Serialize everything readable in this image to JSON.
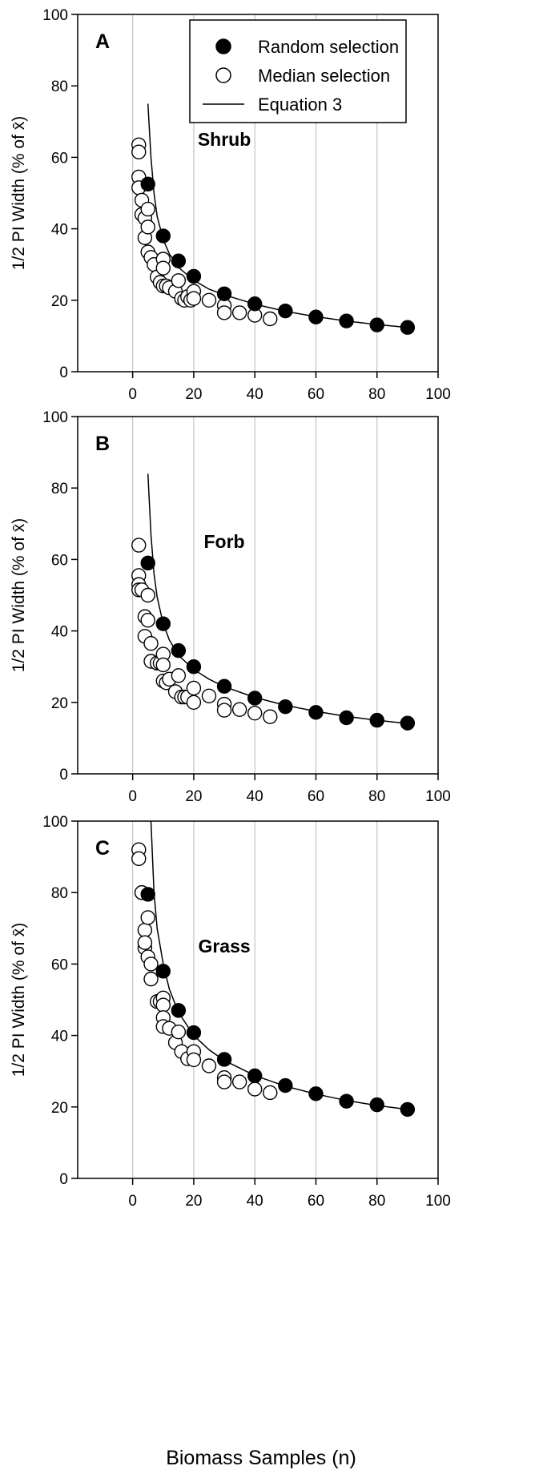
{
  "figure": {
    "x_axis_label": "Biomass Samples (n)"
  },
  "legend": {
    "random_label": "Random selection",
    "median_label": "Median selection",
    "equation_label": "Equation 3"
  },
  "chart_data": [
    {
      "type": "scatter",
      "panel": "A",
      "label": "Shrub",
      "ylabel": "1/2 PI Width (% of x̄)",
      "xlim": [
        -18,
        100
      ],
      "ylim": [
        0,
        100
      ],
      "xticks": [
        0,
        20,
        40,
        60,
        80,
        100
      ],
      "yticks": [
        0,
        20,
        40,
        60,
        80,
        100
      ],
      "grid": "vertical",
      "legend_position": "top-right",
      "series": [
        {
          "name": "Random selection",
          "marker": "filled-circle",
          "x": [
            5,
            10,
            15,
            20,
            30,
            40,
            50,
            60,
            70,
            80,
            90
          ],
          "y": [
            52.5,
            38,
            31,
            26.7,
            21.8,
            19,
            17,
            15.3,
            14.2,
            13.1,
            12.4
          ]
        },
        {
          "name": "Median selection",
          "marker": "open-circle",
          "x": [
            2,
            2,
            2,
            2,
            3,
            3,
            4,
            4,
            5,
            5,
            5,
            6,
            7,
            8,
            9,
            10,
            10,
            10,
            11,
            12,
            14,
            15,
            16,
            17,
            18,
            19,
            20,
            20,
            25,
            30,
            30,
            35,
            40,
            45
          ],
          "y": [
            63.5,
            61.5,
            54.5,
            51.5,
            48,
            44,
            43,
            37.5,
            45.5,
            40.5,
            33.5,
            32,
            30,
            26.5,
            25,
            31.5,
            29,
            24,
            24,
            23.5,
            22.5,
            25.5,
            20.5,
            20,
            21,
            20,
            22.5,
            20.5,
            20,
            18.5,
            16.5,
            16.5,
            15.8,
            14.8
          ]
        },
        {
          "name": "Equation 3",
          "marker": "line",
          "x": [
            5,
            6,
            7,
            8,
            10,
            12,
            15,
            20,
            25,
            30,
            40,
            50,
            60,
            70,
            80,
            90
          ],
          "y": [
            75,
            60,
            50,
            43.5,
            37,
            33,
            29.2,
            25.6,
            23.1,
            21.5,
            18.9,
            16.9,
            15.4,
            14.2,
            13.2,
            12.4
          ]
        }
      ]
    },
    {
      "type": "scatter",
      "panel": "B",
      "label": "Forb",
      "ylabel": "1/2 PI Width (% of x̄)",
      "xlim": [
        -18,
        100
      ],
      "ylim": [
        0,
        100
      ],
      "xticks": [
        0,
        20,
        40,
        60,
        80,
        100
      ],
      "yticks": [
        0,
        20,
        40,
        60,
        80,
        100
      ],
      "grid": "vertical",
      "series": [
        {
          "name": "Random selection",
          "marker": "filled-circle",
          "x": [
            5,
            10,
            15,
            20,
            30,
            40,
            50,
            60,
            70,
            80,
            90
          ],
          "y": [
            59,
            42,
            34.5,
            30,
            24.5,
            21.2,
            18.8,
            17.2,
            15.7,
            15,
            14.2
          ]
        },
        {
          "name": "Median selection",
          "marker": "open-circle",
          "x": [
            2,
            2,
            2,
            2,
            3,
            4,
            4,
            5,
            5,
            6,
            6,
            8,
            9,
            10,
            10,
            10,
            11,
            12,
            14,
            15,
            16,
            17,
            18,
            20,
            20,
            25,
            30,
            30,
            35,
            40,
            45
          ],
          "y": [
            64,
            55.5,
            53,
            51.5,
            51.5,
            44,
            38.5,
            50,
            43,
            36.5,
            31.5,
            31,
            31,
            33.5,
            30.5,
            26,
            25.5,
            26.5,
            23,
            27.5,
            21.5,
            21.5,
            21.5,
            24,
            20,
            21.8,
            19.5,
            17.8,
            18,
            17,
            16
          ]
        },
        {
          "name": "Equation 3",
          "marker": "line",
          "x": [
            5,
            6,
            7,
            8,
            10,
            12,
            15,
            20,
            25,
            30,
            40,
            50,
            60,
            70,
            80,
            90
          ],
          "y": [
            84,
            67,
            56,
            49.5,
            42,
            37.5,
            33.2,
            29.2,
            26.5,
            24.4,
            21.4,
            19.2,
            17.5,
            16.1,
            15,
            14.1
          ]
        }
      ]
    },
    {
      "type": "scatter",
      "panel": "C",
      "label": "Grass",
      "ylabel": "1/2 PI Width (% of x̄)",
      "xlim": [
        -18,
        100
      ],
      "ylim": [
        0,
        100
      ],
      "xticks": [
        0,
        20,
        40,
        60,
        80,
        100
      ],
      "yticks": [
        0,
        20,
        40,
        60,
        80,
        100
      ],
      "grid": "vertical",
      "series": [
        {
          "name": "Random selection",
          "marker": "filled-circle",
          "x": [
            5,
            10,
            15,
            20,
            30,
            40,
            50,
            60,
            70,
            80,
            90
          ],
          "y": [
            79.5,
            58,
            47,
            40.8,
            33.3,
            28.7,
            26,
            23.7,
            21.6,
            20.6,
            19.3
          ]
        },
        {
          "name": "Median selection",
          "marker": "open-circle",
          "x": [
            2,
            2,
            3,
            3,
            4,
            4,
            4,
            5,
            5,
            6,
            6,
            8,
            9,
            10,
            10,
            10,
            10,
            12,
            14,
            15,
            16,
            18,
            20,
            20,
            25,
            30,
            30,
            35,
            40,
            45
          ],
          "y": [
            92,
            89.5,
            80,
            80,
            69.5,
            64.5,
            66,
            73,
            62,
            60,
            55.8,
            49.5,
            49.5,
            50.5,
            48.5,
            45,
            42.5,
            42,
            38,
            41,
            35.5,
            33.5,
            35.5,
            33.2,
            31.5,
            28.2,
            27,
            27,
            25,
            24
          ]
        },
        {
          "name": "Equation 3",
          "marker": "line",
          "x": [
            6,
            7,
            8,
            10,
            12,
            15,
            20,
            25,
            30,
            40,
            50,
            60,
            70,
            80,
            90
          ],
          "y": [
            100,
            80,
            70,
            60,
            53,
            46.5,
            40,
            36,
            33,
            28.8,
            25.8,
            23.6,
            21.8,
            20.4,
            19.3
          ]
        }
      ]
    }
  ]
}
